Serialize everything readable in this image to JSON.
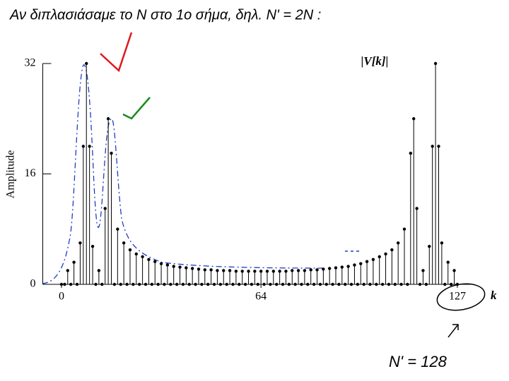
{
  "chart_data": {
    "type": "stem",
    "title": "Αν διπλασιάσαμε το N στο 1ο σήμα, δηλ. N' = 2N :",
    "series_label": "|V[k]|",
    "ylabel": "Amplitude",
    "xlabel": "k",
    "annotation": "N' = 128",
    "color": "#000000",
    "x": [
      0,
      1,
      2,
      3,
      4,
      5,
      6,
      7,
      8,
      9,
      10,
      11,
      12,
      13,
      14,
      15,
      16,
      17,
      18,
      19,
      20,
      21,
      22,
      23,
      24,
      25,
      26,
      27,
      28,
      29,
      30,
      31,
      32,
      33,
      34,
      35,
      36,
      37,
      38,
      39,
      40,
      41,
      42,
      43,
      44,
      45,
      46,
      47,
      48,
      49,
      50,
      51,
      52,
      53,
      54,
      55,
      56,
      57,
      58,
      59,
      60,
      61,
      62,
      63,
      64,
      65,
      66,
      67,
      68,
      69,
      70,
      71,
      72,
      73,
      74,
      75,
      76,
      77,
      78,
      79,
      80,
      81,
      82,
      83,
      84,
      85,
      86,
      87,
      88,
      89,
      90,
      91,
      92,
      93,
      94,
      95,
      96,
      97,
      98,
      99,
      100,
      101,
      102,
      103,
      104,
      105,
      106,
      107,
      108,
      109,
      110,
      111,
      112,
      113,
      114,
      115,
      116,
      117,
      118,
      119,
      120,
      121,
      122,
      123,
      124,
      125,
      126,
      127
    ],
    "values": [
      0,
      0,
      2,
      0,
      3.2,
      0,
      6,
      20,
      32,
      20,
      5.5,
      0,
      2,
      0,
      11,
      24,
      19,
      0,
      8,
      0,
      6,
      0,
      5,
      0,
      4.4,
      0,
      4,
      0,
      3.6,
      0,
      3.3,
      0,
      3,
      0,
      2.8,
      0,
      2.6,
      0,
      2.5,
      0,
      2.4,
      0,
      2.3,
      0,
      2.2,
      0,
      2.1,
      0,
      2.1,
      0,
      2,
      0,
      2,
      0,
      2,
      0,
      1.9,
      0,
      1.9,
      0,
      1.9,
      0,
      1.9,
      0,
      1.9,
      0,
      1.9,
      0,
      1.9,
      0,
      1.9,
      0,
      1.9,
      0,
      2,
      0,
      2,
      0,
      2,
      0,
      2.1,
      0,
      2.1,
      0,
      2.2,
      0,
      2.3,
      0,
      2.4,
      0,
      2.5,
      0,
      2.6,
      0,
      2.8,
      0,
      3,
      0,
      3.3,
      0,
      3.6,
      0,
      4,
      0,
      4.4,
      0,
      5,
      0,
      6,
      0,
      8,
      0,
      19,
      24,
      11,
      0,
      2,
      0,
      5.5,
      20,
      32,
      20,
      6,
      0,
      3.2,
      0,
      2,
      0
    ],
    "xlim": [
      -6,
      132
    ],
    "xticks": [
      0,
      64,
      127
    ],
    "ylim": [
      0,
      32
    ],
    "yticks": [
      0,
      16,
      32
    ]
  }
}
